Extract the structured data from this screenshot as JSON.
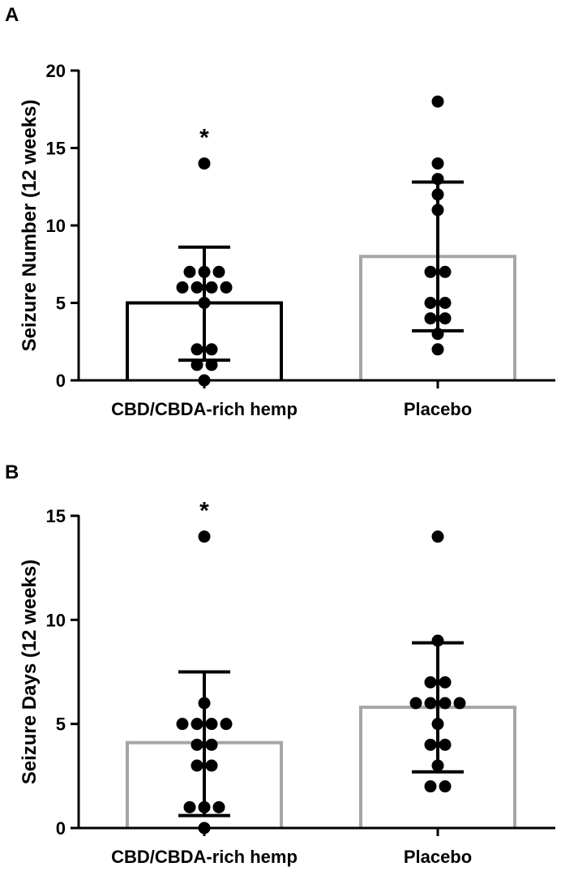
{
  "chart_data": [
    {
      "panel": "A",
      "type": "bar",
      "ylabel": "Seizure Number (12 weeks)",
      "ylim": [
        0,
        20
      ],
      "yticks": [
        "0",
        "5",
        "10",
        "15",
        "20"
      ],
      "categories": [
        "CBD/CBDA-rich hemp",
        "Placebo"
      ],
      "series": [
        {
          "name": "CBD/CBDA-rich hemp",
          "mean": 5,
          "sd_low": 1.3,
          "sd_high": 8.6,
          "bar_color": "#000000",
          "points": [
            14,
            7,
            7,
            7,
            6,
            6,
            6,
            6,
            5,
            2,
            2,
            1,
            1,
            0
          ],
          "significance": "*"
        },
        {
          "name": "Placebo",
          "mean": 8,
          "sd_low": 3.2,
          "sd_high": 12.8,
          "bar_color": "#a6a6a6",
          "points": [
            18,
            14,
            13,
            12,
            11,
            7,
            7,
            5,
            5,
            4,
            4,
            3,
            2
          ],
          "significance": ""
        }
      ]
    },
    {
      "panel": "B",
      "type": "bar",
      "ylabel": "Seizure Days (12 weeks)",
      "ylim": [
        0,
        15
      ],
      "yticks": [
        "0",
        "5",
        "10",
        "15"
      ],
      "categories": [
        "CBD/CBDA-rich hemp",
        "Placebo"
      ],
      "series": [
        {
          "name": "CBD/CBDA-rich hemp",
          "mean": 4.1,
          "sd_low": 0.6,
          "sd_high": 7.5,
          "bar_color": "#a6a6a6",
          "points": [
            14,
            6,
            5,
            5,
            5,
            5,
            4,
            4,
            3,
            3,
            1,
            1,
            1,
            0
          ],
          "significance": "*"
        },
        {
          "name": "Placebo",
          "mean": 5.8,
          "sd_low": 2.7,
          "sd_high": 8.9,
          "bar_color": "#a6a6a6",
          "points": [
            14,
            9,
            7,
            7,
            6,
            6,
            6,
            6,
            5,
            4,
            4,
            3,
            2,
            2
          ],
          "significance": ""
        }
      ]
    }
  ]
}
